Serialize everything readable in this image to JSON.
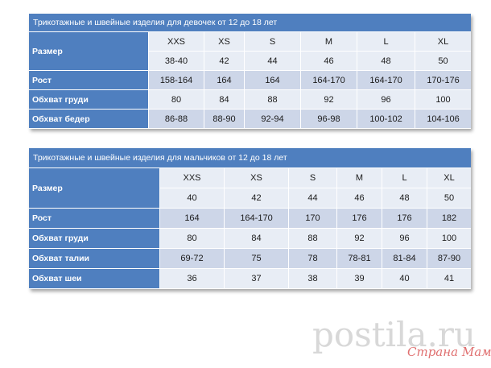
{
  "girls": {
    "title": "Трикотажные и швейные изделия для девочек от 12 до 18 лет",
    "size_label": "Размер",
    "size_letters": [
      "XXS",
      "XS",
      "S",
      "M",
      "L",
      "XL"
    ],
    "size_numbers": [
      "38-40",
      "42",
      "44",
      "46",
      "48",
      "50"
    ],
    "rows": [
      {
        "label": "Рост",
        "values": [
          "158-164",
          "164",
          "164",
          "164-170",
          "164-170",
          "170-176"
        ]
      },
      {
        "label": "Обхват груди",
        "values": [
          "80",
          "84",
          "88",
          "92",
          "96",
          "100"
        ]
      },
      {
        "label": "Обхват бедер",
        "values": [
          "86-88",
          "88-90",
          "92-94",
          "96-98",
          "100-102",
          "104-106"
        ]
      }
    ]
  },
  "boys": {
    "title": "Трикотажные и швейные изделия для мальчиков от 12 до 18 лет",
    "size_label": "Размер",
    "size_letters": [
      "XXS",
      "XS",
      "S",
      "M",
      "L",
      "XL"
    ],
    "size_numbers": [
      "40",
      "42",
      "44",
      "46",
      "48",
      "50"
    ],
    "rows": [
      {
        "label": "Рост",
        "values": [
          "164",
          "164-170",
          "170",
          "176",
          "176",
          "182"
        ]
      },
      {
        "label": "Обхват груди",
        "values": [
          "80",
          "84",
          "88",
          "92",
          "96",
          "100"
        ]
      },
      {
        "label": "Обхват талии",
        "values": [
          "69-72",
          "75",
          "78",
          "78-81",
          "81-84",
          "87-90"
        ]
      },
      {
        "label": "Обхват шеи",
        "values": [
          "36",
          "37",
          "38",
          "39",
          "40",
          "41"
        ]
      }
    ]
  },
  "watermark": {
    "main": "postila.ru",
    "sub": "Страна Мам"
  }
}
